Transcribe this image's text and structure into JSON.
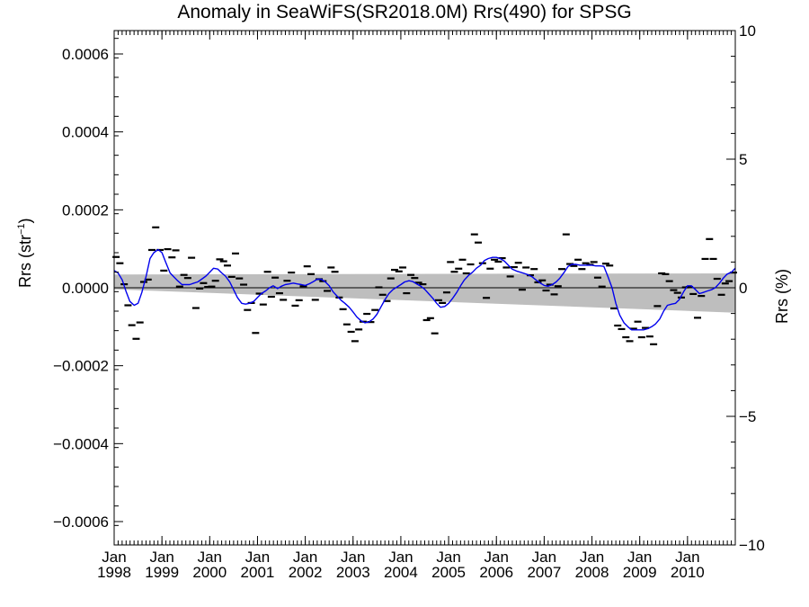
{
  "chart_data": {
    "type": "line",
    "title": "Anomaly in SeaWiFS(SR2018.0M) Rrs(490) for SPSG",
    "ylabel_left_main": "Rrs (str",
    "ylabel_left_sup": "−1",
    "ylabel_left_close": ")",
    "ylabel_right": "Rrs (%)",
    "x_ticks": [
      {
        "month": "Jan",
        "year": "1998"
      },
      {
        "month": "Jan",
        "year": "1999"
      },
      {
        "month": "Jan",
        "year": "2000"
      },
      {
        "month": "Jan",
        "year": "2001"
      },
      {
        "month": "Jan",
        "year": "2002"
      },
      {
        "month": "Jan",
        "year": "2003"
      },
      {
        "month": "Jan",
        "year": "2004"
      },
      {
        "month": "Jan",
        "year": "2005"
      },
      {
        "month": "Jan",
        "year": "2006"
      },
      {
        "month": "Jan",
        "year": "2007"
      },
      {
        "month": "Jan",
        "year": "2008"
      },
      {
        "month": "Jan",
        "year": "2009"
      },
      {
        "month": "Jan",
        "year": "2010"
      }
    ],
    "xlim": [
      1998.0,
      2011.0
    ],
    "ylim_left": [
      -0.00066,
      0.00066
    ],
    "ylim_right": [
      -10,
      10
    ],
    "y_ticks_left": [
      "0.0006",
      "0.0004",
      "0.0002",
      "0.0000",
      "−0.0002",
      "−0.0004",
      "−0.0006"
    ],
    "y_tick_values_left": [
      0.0006,
      0.0004,
      0.0002,
      0.0,
      -0.0002,
      -0.0004,
      -0.0006
    ],
    "y_ticks_right": [
      "10",
      "5",
      "0",
      "−5",
      "−10"
    ],
    "y_tick_values_right": [
      10,
      5,
      0,
      -5,
      -10
    ],
    "colors": {
      "line": "#0000ee",
      "band": "#bebebe",
      "points": "#000000",
      "zero": "#000000"
    },
    "confidence_band": {
      "x": [
        1998.0,
        2011.0
      ],
      "upper": [
        3.4e-05,
        3.7e-05
      ],
      "lower": [
        -4e-06,
        -6.4e-05
      ]
    },
    "series": [
      {
        "style": "dash-points",
        "x": [
          1998.04,
          1998.12,
          1998.21,
          1998.29,
          1998.37,
          1998.46,
          1998.54,
          1998.62,
          1998.71,
          1998.79,
          1998.87,
          1998.96,
          1999.04,
          1999.12,
          1999.21,
          1999.29,
          1999.37,
          1999.46,
          1999.54,
          1999.62,
          1999.71,
          1999.79,
          1999.87,
          1999.96,
          2000.04,
          2000.12,
          2000.21,
          2000.29,
          2000.37,
          2000.46,
          2000.54,
          2000.62,
          2000.71,
          2000.79,
          2000.87,
          2000.96,
          2001.04,
          2001.12,
          2001.21,
          2001.29,
          2001.37,
          2001.46,
          2001.54,
          2001.62,
          2001.71,
          2001.79,
          2001.87,
          2001.96,
          2002.04,
          2002.12,
          2002.21,
          2002.29,
          2002.37,
          2002.46,
          2002.54,
          2002.62,
          2002.71,
          2002.79,
          2002.87,
          2002.96,
          2003.04,
          2003.12,
          2003.21,
          2003.29,
          2003.37,
          2003.46,
          2003.54,
          2003.62,
          2003.71,
          2003.79,
          2003.87,
          2003.96,
          2004.04,
          2004.12,
          2004.21,
          2004.29,
          2004.37,
          2004.46,
          2004.54,
          2004.62,
          2004.71,
          2004.79,
          2004.87,
          2004.96,
          2005.04,
          2005.12,
          2005.21,
          2005.29,
          2005.37,
          2005.46,
          2005.54,
          2005.62,
          2005.71,
          2005.79,
          2005.87,
          2005.96,
          2006.04,
          2006.12,
          2006.21,
          2006.29,
          2006.37,
          2006.46,
          2006.54,
          2006.62,
          2006.71,
          2006.79,
          2006.87,
          2006.96,
          2007.04,
          2007.12,
          2007.21,
          2007.29,
          2007.37,
          2007.46,
          2007.54,
          2007.62,
          2007.71,
          2007.79,
          2007.87,
          2007.96,
          2008.04,
          2008.12,
          2008.21,
          2008.29,
          2008.37,
          2008.46,
          2008.54,
          2008.62,
          2008.71,
          2008.79,
          2008.87,
          2008.96,
          2009.04,
          2009.12,
          2009.21,
          2009.29,
          2009.37,
          2009.46,
          2009.54,
          2009.62,
          2009.71,
          2009.79,
          2009.87,
          2009.96,
          2010.04,
          2010.12,
          2010.21,
          2010.29,
          2010.37,
          2010.46,
          2010.54,
          2010.62,
          2010.71,
          2010.79,
          2010.87,
          2010.96
        ],
        "y": [
          7.9e-05,
          6.3e-05,
          9e-06,
          -4.5e-05,
          -9.6e-05,
          -0.000131,
          -8.9e-05,
          1.5e-05,
          2.1e-05,
          9.7e-05,
          0.000155,
          9.7e-05,
          4.4e-05,
          9.9e-05,
          7.8e-05,
          9.6e-05,
          3e-06,
          3.3e-05,
          2.5e-05,
          7.7e-05,
          -5.2e-05,
          -2e-06,
          1.2e-05,
          2e-06,
          3e-06,
          1.8e-05,
          7.3e-05,
          6.8e-05,
          5.7e-05,
          2.8e-05,
          8.8e-05,
          2.4e-05,
          8e-06,
          -5.7e-05,
          -3.9e-05,
          -0.000116,
          -1.5e-05,
          -4.3e-05,
          4.1e-05,
          -2.3e-05,
          2.6e-05,
          -1.4e-05,
          -3.1e-05,
          1.8e-05,
          3.9e-05,
          -4.6e-05,
          -3.2e-05,
          4e-06,
          5.5e-05,
          3.5e-05,
          -3.1e-05,
          2.2e-05,
          1.7e-05,
          -8e-06,
          5.2e-05,
          4.1e-05,
          -2.5e-05,
          -5.5e-05,
          -9.4e-05,
          -0.000113,
          -0.000137,
          -0.000107,
          -8.7e-05,
          -6.7e-05,
          -8.8e-05,
          -5.7e-05,
          1e-06,
          -1.8e-05,
          -3.4e-05,
          2.4e-05,
          4.6e-05,
          4.2e-05,
          5.2e-05,
          -1.4e-05,
          3.3e-05,
          2.5e-05,
          1.3e-05,
          9e-06,
          -8.3e-05,
          -7.8e-05,
          -0.000117,
          -3.2e-05,
          -3.9e-05,
          -1.2e-05,
          6.6e-05,
          4.1e-05,
          4.9e-05,
          7.2e-05,
          3.7e-05,
          6e-05,
          0.000137,
          0.000116,
          6.3e-05,
          -2.6e-05,
          4.9e-05,
          7.2e-05,
          6.7e-05,
          7.6e-05,
          5.2e-05,
          2.9e-05,
          5.3e-05,
          6.4e-05,
          -5e-06,
          5.2e-05,
          3.2e-05,
          4.8e-05,
          1.4e-05,
          1.9e-05,
          -7e-06,
          8e-06,
          -1.7e-05,
          4e-06,
          4.8e-05,
          0.000137,
          6.1e-05,
          5.6e-05,
          7.2e-05,
          4.8e-05,
          6.3e-05,
          5.9e-05,
          6.6e-05,
          2.6e-05,
          3e-06,
          6.2e-05,
          5.7e-05,
          -5.3e-05,
          -9.7e-05,
          -0.000106,
          -0.000127,
          -0.000137,
          -0.000105,
          -8.7e-05,
          -0.000127,
          -0.000103,
          -0.000125,
          -0.000145,
          -4.7e-05,
          3.7e-05,
          3.5e-05,
          1.7e-05,
          -6e-06,
          -1.3e-05,
          -2.5e-05,
          1e-06,
          2e-06,
          -1.6e-05,
          -7.7e-05,
          -2.1e-05,
          7.4e-05,
          0.000125,
          7.4e-05,
          2.3e-05,
          -1.8e-05,
          1.1e-05,
          1.7e-05,
          3.9e-05
        ]
      },
      {
        "style": "line",
        "x": [
          1998.0,
          1998.08,
          1998.17,
          1998.25,
          1998.33,
          1998.42,
          1998.5,
          1998.58,
          1998.67,
          1998.75,
          1998.83,
          1998.92,
          1999.0,
          1999.08,
          1999.17,
          1999.25,
          1999.33,
          1999.42,
          1999.5,
          1999.58,
          1999.67,
          1999.75,
          1999.83,
          1999.92,
          2000.0,
          2000.08,
          2000.17,
          2000.25,
          2000.33,
          2000.42,
          2000.5,
          2000.58,
          2000.67,
          2000.75,
          2000.83,
          2000.92,
          2001.0,
          2001.08,
          2001.17,
          2001.25,
          2001.33,
          2001.42,
          2001.5,
          2001.58,
          2001.67,
          2001.75,
          2001.83,
          2001.92,
          2002.0,
          2002.08,
          2002.17,
          2002.25,
          2002.33,
          2002.42,
          2002.5,
          2002.58,
          2002.67,
          2002.75,
          2002.83,
          2002.92,
          2003.0,
          2003.08,
          2003.17,
          2003.25,
          2003.33,
          2003.42,
          2003.5,
          2003.58,
          2003.67,
          2003.75,
          2003.83,
          2003.92,
          2004.0,
          2004.08,
          2004.17,
          2004.25,
          2004.33,
          2004.42,
          2004.5,
          2004.58,
          2004.67,
          2004.75,
          2004.83,
          2004.92,
          2005.0,
          2005.08,
          2005.17,
          2005.25,
          2005.33,
          2005.42,
          2005.5,
          2005.58,
          2005.67,
          2005.75,
          2005.83,
          2005.92,
          2006.0,
          2006.08,
          2006.17,
          2006.25,
          2006.33,
          2006.42,
          2006.5,
          2006.58,
          2006.67,
          2006.75,
          2006.83,
          2006.92,
          2007.0,
          2007.08,
          2007.17,
          2007.25,
          2007.33,
          2007.42,
          2007.5,
          2007.58,
          2007.67,
          2007.75,
          2007.83,
          2007.92,
          2008.0,
          2008.08,
          2008.17,
          2008.25,
          2008.33,
          2008.42,
          2008.5,
          2008.58,
          2008.67,
          2008.75,
          2008.83,
          2008.92,
          2009.0,
          2009.08,
          2009.17,
          2009.25,
          2009.33,
          2009.42,
          2009.5,
          2009.58,
          2009.67,
          2009.75,
          2009.83,
          2009.92,
          2010.0,
          2010.08,
          2010.17,
          2010.25,
          2010.33,
          2010.42,
          2010.5,
          2010.58,
          2010.67,
          2010.75,
          2010.83,
          2010.92,
          2011.0
        ],
        "y": [
          4.4e-05,
          3.8e-05,
          2e-05,
          -1e-05,
          -3.5e-05,
          -4.5e-05,
          -4e-05,
          -1.2e-05,
          3e-05,
          7.5e-05,
          9e-05,
          9.8e-05,
          9e-05,
          6.5e-05,
          3.8e-05,
          2.8e-05,
          1.8e-05,
          8e-06,
          8e-06,
          8e-06,
          1.2e-05,
          1.5e-05,
          2.2e-05,
          3e-05,
          4e-05,
          5e-05,
          4.8e-05,
          3.8e-05,
          3e-05,
          1.5e-05,
          -5e-06,
          -2.5e-05,
          -4e-05,
          -4.2e-05,
          -4e-05,
          -3.5e-05,
          -2.5e-05,
          -1.5e-05,
          -8e-06,
          0.0,
          5e-06,
          -2e-06,
          4e-06,
          8e-06,
          1e-05,
          1.2e-05,
          1e-05,
          8e-06,
          6e-06,
          1e-05,
          1.6e-05,
          2.2e-05,
          2.2e-05,
          1.5e-05,
          5e-06,
          -1e-05,
          -2.2e-05,
          -3.2e-05,
          -4e-05,
          -5e-05,
          -6.2e-05,
          -7.5e-05,
          -8.5e-05,
          -9e-05,
          -8.8e-05,
          -8e-05,
          -6.8e-05,
          -5e-05,
          -3e-05,
          -1.5e-05,
          -5e-06,
          2e-06,
          8e-06,
          1.5e-05,
          1.8e-05,
          1.6e-05,
          1e-05,
          4e-06,
          -4e-06,
          -1.5e-05,
          -2.7e-05,
          -4e-05,
          -5e-05,
          -4.8e-05,
          -4e-05,
          -2.8e-05,
          -1.2e-05,
          5e-06,
          2e-05,
          3.2e-05,
          4e-05,
          5e-05,
          5.8e-05,
          7e-05,
          7.5e-05,
          7.8e-05,
          7.8e-05,
          7.5e-05,
          6.8e-05,
          5.8e-05,
          4.8e-05,
          4.3e-05,
          4e-05,
          3.7e-05,
          3.3e-05,
          2.8e-05,
          2e-05,
          1.2e-05,
          6e-06,
          4e-06,
          8e-06,
          1.5e-05,
          2.5e-05,
          4e-05,
          5.5e-05,
          6e-05,
          6e-05,
          5.8e-05,
          5.8e-05,
          5.8e-05,
          5.8e-05,
          5.6e-05,
          5.6e-05,
          5.5e-05,
          3e-05,
          0.0,
          -4e-05,
          -7e-05,
          -9e-05,
          -0.0001,
          -0.000108,
          -0.000108,
          -0.000108,
          -0.000108,
          -0.000105,
          -0.0001,
          -9.3e-05,
          -8e-05,
          -6e-05,
          -4.5e-05,
          -4.2e-05,
          -4e-05,
          -3e-05,
          -1e-05,
          5e-06,
          5e-06,
          -5e-06,
          -1.5e-05,
          -1.2e-05,
          -8e-06,
          -5e-06,
          0.0,
          1.2e-05,
          2.5e-05,
          3.5e-05,
          4e-05,
          5e-05
        ]
      }
    ]
  }
}
